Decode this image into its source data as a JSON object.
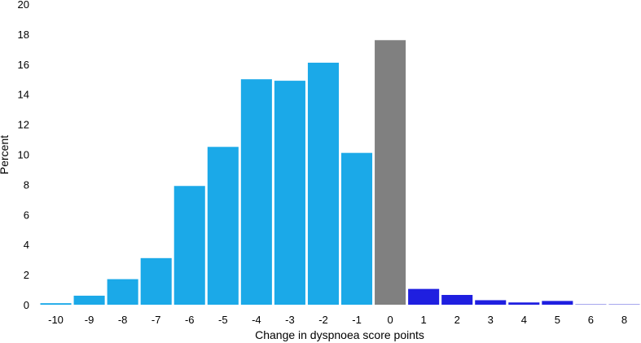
{
  "chart_data": {
    "type": "bar",
    "title": "",
    "xlabel": "Change in dyspnoea score points",
    "ylabel": "Percent",
    "ylim": [
      0,
      20
    ],
    "yticks": [
      0,
      2,
      4,
      6,
      8,
      10,
      12,
      14,
      16,
      18,
      20
    ],
    "grid": false,
    "legend": "none",
    "categories": [
      "-10",
      "-9",
      "-8",
      "-7",
      "-6",
      "-5",
      "-4",
      "-3",
      "-2",
      "-1",
      "0",
      "1",
      "2",
      "3",
      "4",
      "5",
      "6",
      "8"
    ],
    "values": [
      0.1,
      0.6,
      1.7,
      3.1,
      7.9,
      10.5,
      15.0,
      14.9,
      16.1,
      10.1,
      17.6,
      1.05,
      0.65,
      0.3,
      0.15,
      0.25,
      0.05,
      0.05
    ],
    "colors": {
      "improved": "#1ba9e8",
      "no_change": "#808080",
      "worsened": "#1f1fe0",
      "worsened_light": "#a6a6ee"
    },
    "bar_color_keys": [
      "improved",
      "improved",
      "improved",
      "improved",
      "improved",
      "improved",
      "improved",
      "improved",
      "improved",
      "improved",
      "no_change",
      "worsened",
      "worsened",
      "worsened",
      "worsened",
      "worsened",
      "worsened_light",
      "worsened_light"
    ]
  }
}
